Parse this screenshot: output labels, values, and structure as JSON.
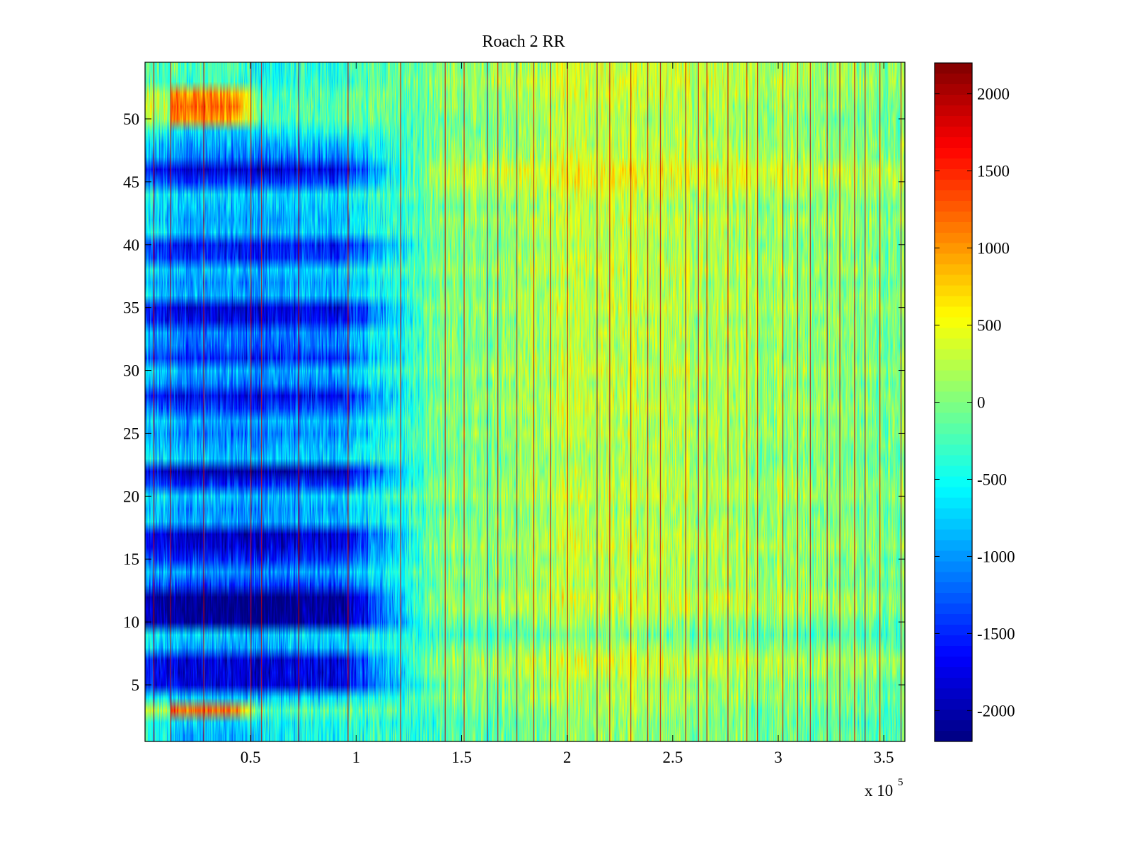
{
  "chart_data": {
    "type": "heatmap",
    "title": "Roach 2 RR",
    "xlabel": "",
    "ylabel": "",
    "x_range": [
      0,
      360000
    ],
    "y_range": [
      0.5,
      54.5
    ],
    "rows": 54,
    "x_ticks": [
      50000,
      100000,
      150000,
      200000,
      250000,
      300000,
      350000
    ],
    "x_tick_labels": [
      "0.5",
      "1",
      "1.5",
      "2",
      "2.5",
      "3",
      "3.5"
    ],
    "x_multiplier_label": "x 10",
    "x_multiplier_exponent": "5",
    "y_ticks": [
      5,
      10,
      15,
      20,
      25,
      30,
      35,
      40,
      45,
      50
    ],
    "y_tick_labels": [
      "5",
      "10",
      "15",
      "20",
      "25",
      "30",
      "35",
      "40",
      "45",
      "50"
    ],
    "colorbar": {
      "colormap": "jet",
      "range": [
        -2200,
        2200
      ],
      "ticks": [
        2000,
        1500,
        1000,
        500,
        0,
        -500,
        -1000,
        -1500,
        -2000
      ],
      "tick_labels": [
        "2000",
        "1500",
        "1000",
        "500",
        "0",
        "-500",
        "-1000",
        "-1500",
        "-2000"
      ]
    },
    "row_offset_early": [
      -400,
      -200,
      1700,
      -250,
      -1300,
      -1300,
      -1300,
      -400,
      -250,
      -1600,
      -1700,
      -1700,
      -900,
      -500,
      -1000,
      -1300,
      -1400,
      -400,
      -500,
      -300,
      -1000,
      -1500,
      -300,
      -400,
      -600,
      -400,
      -900,
      -1200,
      -600,
      -400,
      -1000,
      -700,
      -600,
      -1200,
      -1300,
      -400,
      -500,
      -300,
      -1000,
      -1100,
      -300,
      -400,
      -300,
      -200,
      -900,
      -1300,
      -600,
      -400,
      -200,
      1500,
      1700,
      1500,
      200,
      300
    ],
    "row_offset_late": [
      -150,
      -200,
      -100,
      0,
      -50,
      100,
      150,
      -50,
      -250,
      -100,
      100,
      150,
      0,
      50,
      0,
      100,
      50,
      0,
      -50,
      100,
      50,
      0,
      -50,
      0,
      50,
      0,
      100,
      50,
      0,
      100,
      50,
      0,
      50,
      0,
      100,
      50,
      0,
      100,
      50,
      0,
      50,
      100,
      0,
      100,
      250,
      300,
      100,
      50,
      0,
      0,
      50,
      100,
      150,
      100
    ],
    "column_profile": [
      {
        "x": 0,
        "value": -300
      },
      {
        "x": 20000,
        "value": -500
      },
      {
        "x": 50000,
        "value": -550
      },
      {
        "x": 90000,
        "value": -450
      },
      {
        "x": 100000,
        "value": -350
      },
      {
        "x": 130000,
        "value": -150
      },
      {
        "x": 170000,
        "value": 50
      },
      {
        "x": 200000,
        "value": 200
      },
      {
        "x": 240000,
        "value": 250
      },
      {
        "x": 280000,
        "value": 150
      },
      {
        "x": 320000,
        "value": 0
      },
      {
        "x": 360000,
        "value": -50
      }
    ],
    "vertical_spike_x": [
      4000,
      12000,
      27500,
      50000,
      55000,
      72500,
      96000,
      121000,
      142000,
      151000,
      162000,
      167000,
      176000,
      184000,
      192000,
      200000,
      214000,
      220000,
      230000,
      238000,
      244000,
      256000,
      262000,
      266000,
      276000,
      285000,
      290000,
      302000,
      309000,
      315000,
      323000,
      329000,
      336000,
      341000,
      348000,
      358000
    ],
    "spike_value": 1900
  }
}
